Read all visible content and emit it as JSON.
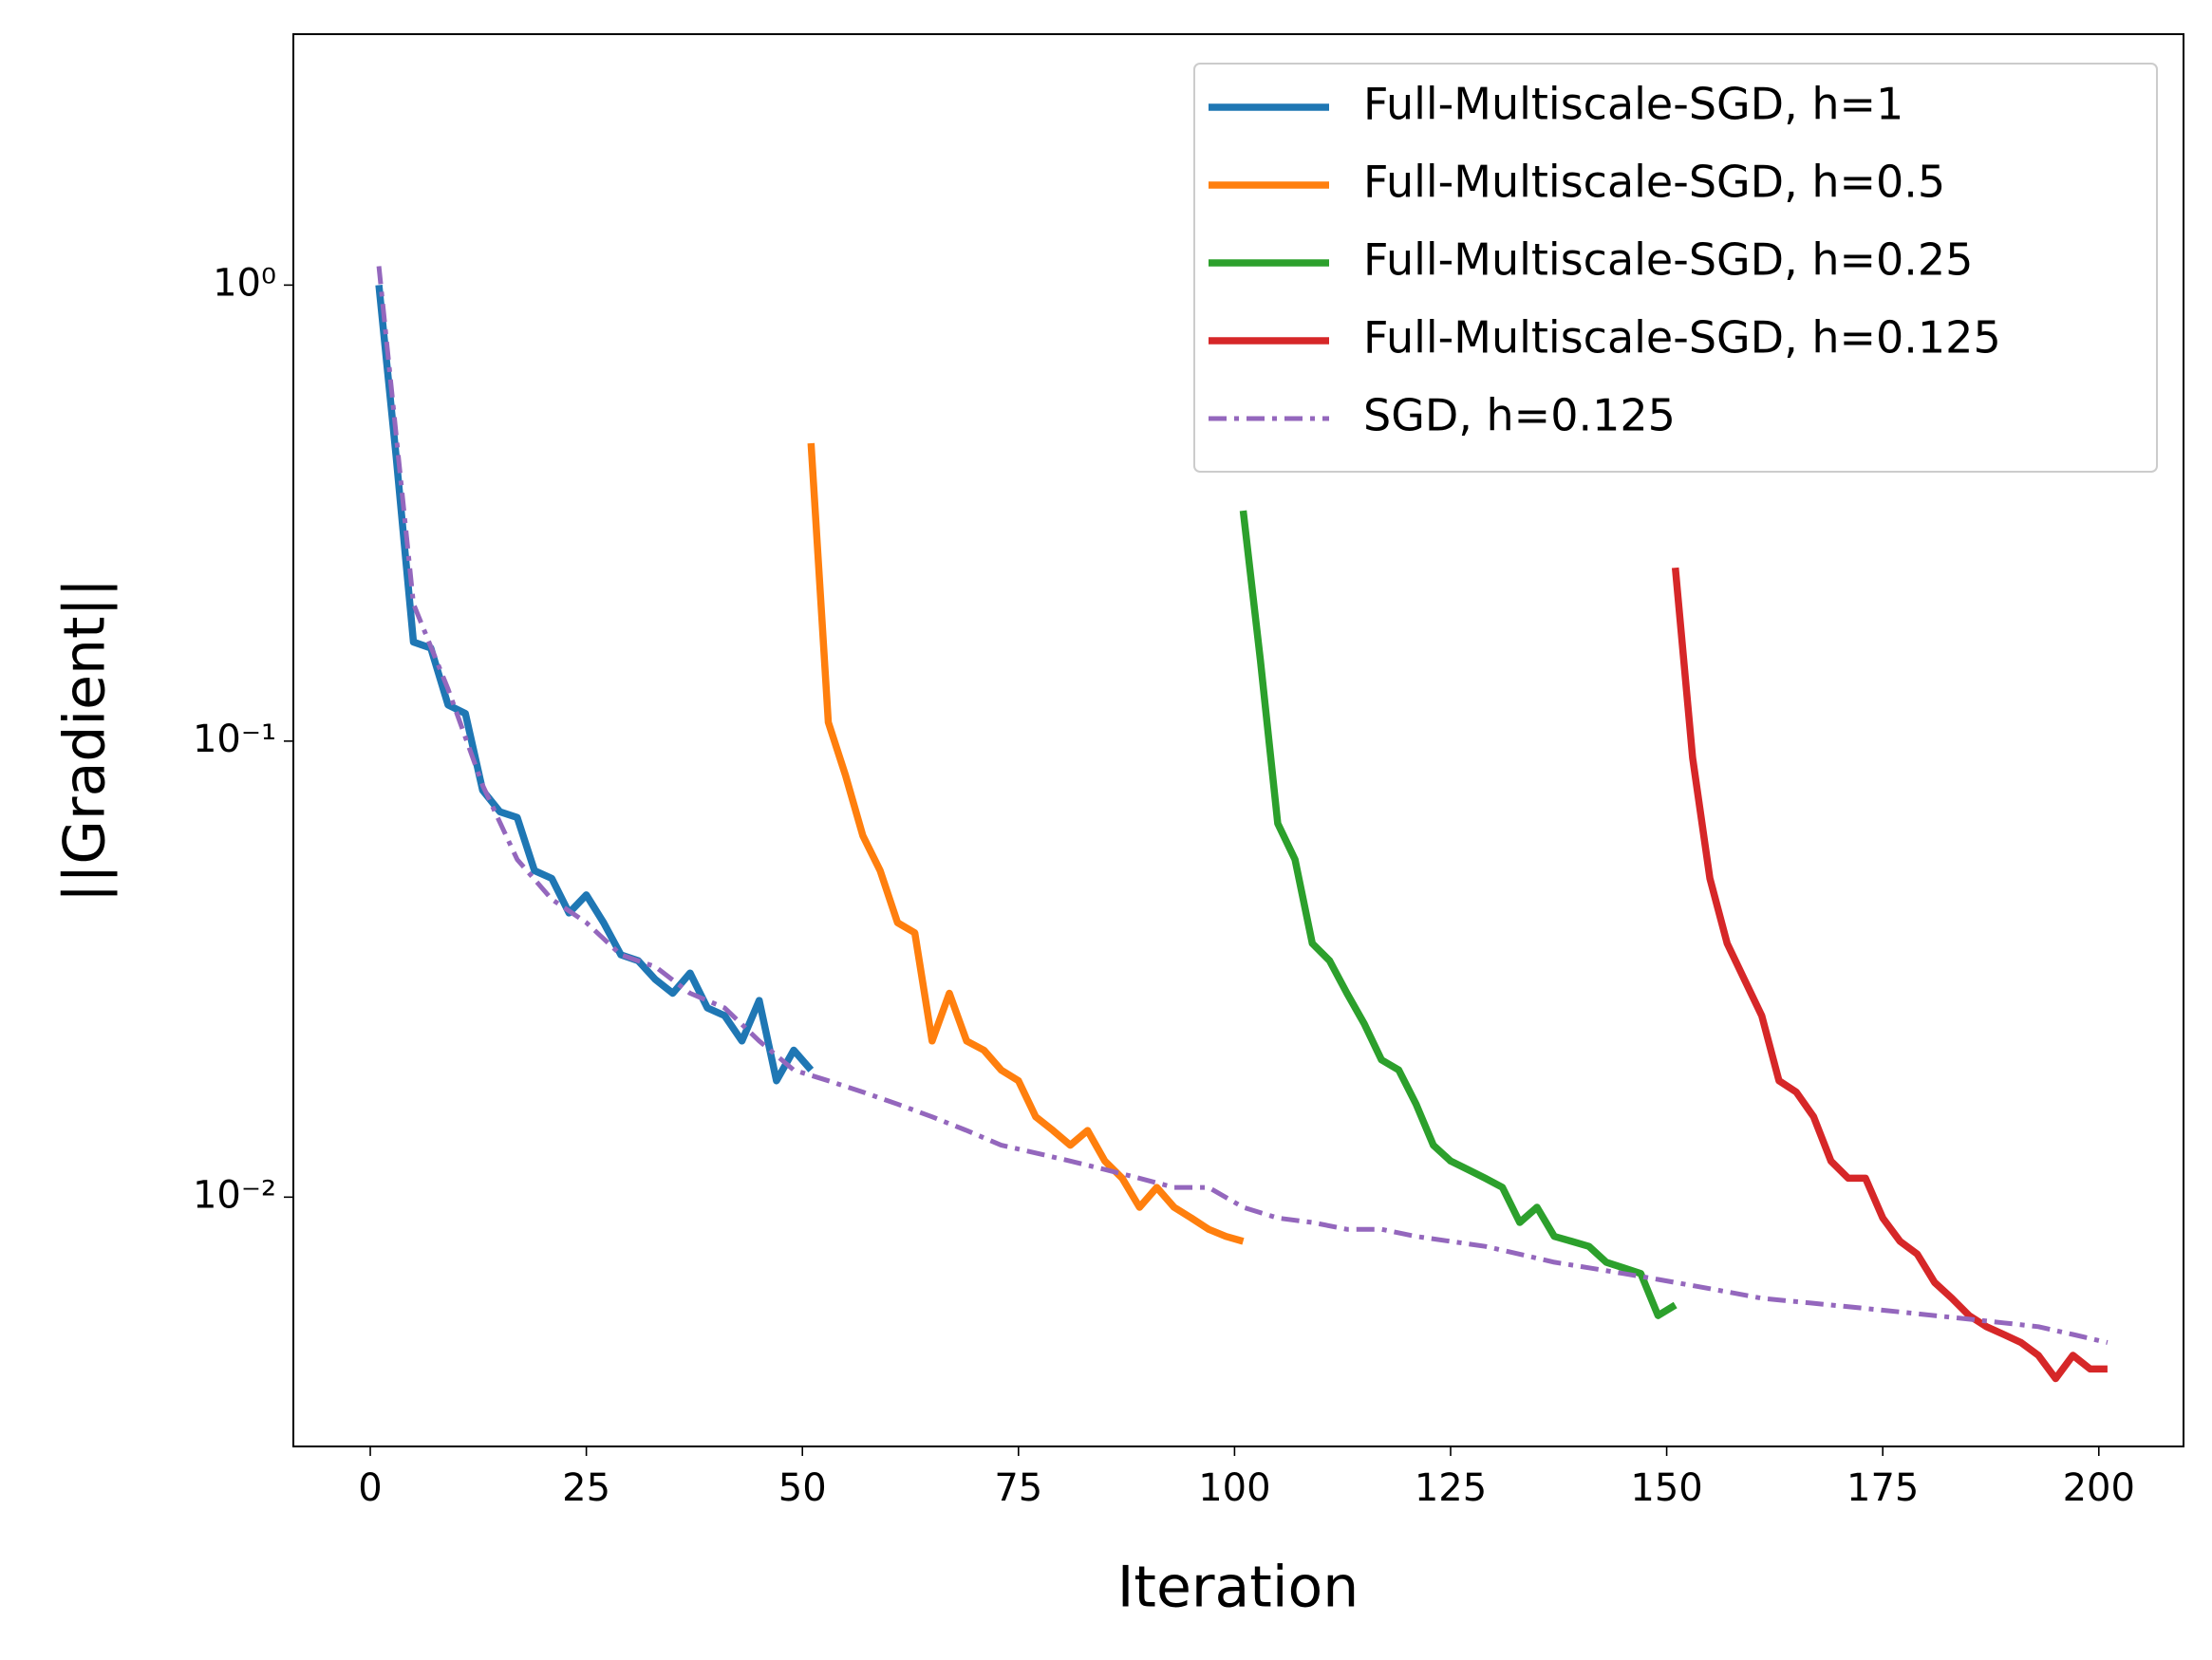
{
  "chart_data": {
    "type": "line",
    "xlabel": "Iteration",
    "ylabel": "||Gradient||",
    "xlim": [
      -8.9,
      209.8
    ],
    "ylim": [
      0.00284,
      3.55
    ],
    "log_y": true,
    "xticks": [
      0,
      25,
      50,
      75,
      100,
      125,
      150,
      175,
      200
    ],
    "yticks": [
      {
        "value": 0.01,
        "label": "10⁻²"
      },
      {
        "value": 0.1,
        "label": "10⁻¹"
      },
      {
        "value": 1,
        "label": "10⁰"
      }
    ],
    "legend": "upper right",
    "series": [
      {
        "name": "Full-Multiscale-SGD, h=1",
        "color": "#1f77b4",
        "style": "solid",
        "x": [
          1,
          3,
          5,
          7,
          9,
          11,
          13,
          15,
          17,
          19,
          21,
          23,
          25,
          27,
          29,
          31,
          33,
          35,
          37,
          39,
          41,
          43,
          45,
          47,
          49,
          51
        ],
        "values": [
          1.0,
          0.42,
          0.165,
          0.16,
          0.12,
          0.115,
          0.078,
          0.07,
          0.068,
          0.052,
          0.05,
          0.042,
          0.046,
          0.04,
          0.034,
          0.033,
          0.03,
          0.028,
          0.031,
          0.026,
          0.025,
          0.022,
          0.027,
          0.018,
          0.021,
          0.019
        ]
      },
      {
        "name": "Full-Multiscale-SGD, h=0.5",
        "color": "#ff7f0e",
        "style": "solid",
        "x": [
          51,
          53,
          55,
          57,
          59,
          61,
          63,
          65,
          67,
          69,
          71,
          73,
          75,
          77,
          79,
          81,
          83,
          85,
          87,
          89,
          91,
          93,
          95,
          97,
          99,
          101
        ],
        "values": [
          0.45,
          0.11,
          0.084,
          0.062,
          0.052,
          0.04,
          0.038,
          0.022,
          0.028,
          0.022,
          0.021,
          0.019,
          0.018,
          0.015,
          0.014,
          0.013,
          0.014,
          0.012,
          0.011,
          0.0095,
          0.0105,
          0.0095,
          0.009,
          0.0085,
          0.0082,
          0.008
        ]
      },
      {
        "name": "Full-Multiscale-SGD, h=0.25",
        "color": "#2ca02c",
        "style": "solid",
        "x": [
          101,
          103,
          105,
          107,
          109,
          111,
          113,
          115,
          117,
          119,
          121,
          123,
          125,
          127,
          129,
          131,
          133,
          135,
          137,
          139,
          141,
          143,
          145,
          147,
          149,
          151
        ],
        "values": [
          0.32,
          0.15,
          0.066,
          0.055,
          0.036,
          0.033,
          0.028,
          0.024,
          0.02,
          0.019,
          0.016,
          0.013,
          0.012,
          0.0115,
          0.011,
          0.0105,
          0.0088,
          0.0095,
          0.0082,
          0.008,
          0.0078,
          0.0072,
          0.007,
          0.0068,
          0.0055,
          0.0058
        ]
      },
      {
        "name": "Full-Multiscale-SGD, h=0.125",
        "color": "#d62728",
        "style": "solid",
        "x": [
          151,
          153,
          155,
          157,
          159,
          161,
          163,
          165,
          167,
          169,
          171,
          173,
          175,
          177,
          179,
          181,
          183,
          185,
          187,
          189,
          191,
          193,
          195,
          197,
          199,
          201
        ],
        "values": [
          0.24,
          0.092,
          0.05,
          0.036,
          0.03,
          0.025,
          0.018,
          0.017,
          0.015,
          0.012,
          0.011,
          0.011,
          0.009,
          0.008,
          0.0075,
          0.0065,
          0.006,
          0.0055,
          0.0052,
          0.005,
          0.0048,
          0.0045,
          0.004,
          0.0045,
          0.0042,
          0.0042
        ]
      },
      {
        "name": "SGD, h=0.125",
        "color": "#9467bd",
        "style": "dashdot",
        "x": [
          1,
          5,
          9,
          13,
          17,
          21,
          25,
          29,
          33,
          37,
          41,
          45,
          49,
          53,
          57,
          61,
          65,
          69,
          73,
          77,
          81,
          85,
          89,
          93,
          97,
          101,
          105,
          109,
          113,
          117,
          121,
          125,
          129,
          133,
          137,
          141,
          145,
          149,
          153,
          157,
          161,
          165,
          169,
          173,
          177,
          181,
          185,
          189,
          193,
          197,
          201
        ],
        "values": [
          1.1,
          0.2,
          0.13,
          0.08,
          0.055,
          0.045,
          0.04,
          0.034,
          0.032,
          0.028,
          0.026,
          0.022,
          0.019,
          0.018,
          0.017,
          0.016,
          0.015,
          0.014,
          0.013,
          0.0125,
          0.012,
          0.0115,
          0.011,
          0.0105,
          0.0105,
          0.0095,
          0.009,
          0.0088,
          0.0085,
          0.0085,
          0.0082,
          0.008,
          0.0078,
          0.0075,
          0.0072,
          0.007,
          0.0068,
          0.0066,
          0.0064,
          0.0062,
          0.006,
          0.0059,
          0.0058,
          0.0057,
          0.0056,
          0.0055,
          0.0054,
          0.0053,
          0.0052,
          0.005,
          0.0048
        ]
      }
    ]
  }
}
